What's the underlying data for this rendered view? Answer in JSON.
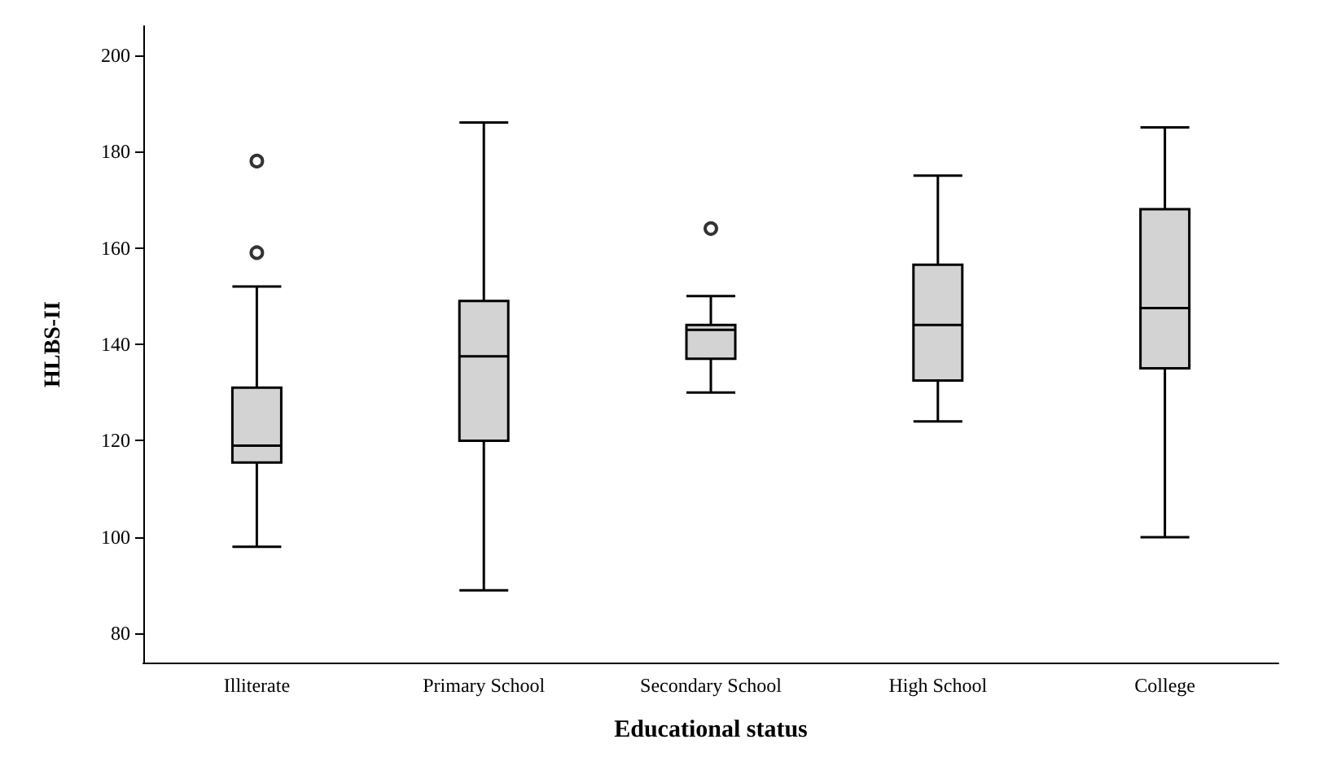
{
  "chart_data": {
    "type": "box",
    "xlabel": "Educational status",
    "ylabel": "HLBS-II",
    "color": "#d3d3d3",
    "categories": [
      "Illiterate",
      "Primary School",
      "Secondary School",
      "High School",
      "College"
    ],
    "boxes": [
      {
        "low": 98,
        "q1": 115.5,
        "median": 119,
        "q3": 131,
        "high": 152,
        "outliers": [
          159,
          178
        ]
      },
      {
        "low": 89,
        "q1": 120,
        "median": 137.5,
        "q3": 149,
        "high": 186
      },
      {
        "low": 130,
        "q1": 137,
        "median": 143,
        "q3": 144,
        "high": 150,
        "outliers": [
          164
        ]
      },
      {
        "low": 124,
        "q1": 132.5,
        "median": 144,
        "q3": 156.5,
        "high": 175
      },
      {
        "low": 100,
        "q1": 135,
        "median": 147.5,
        "q3": 168,
        "high": 185
      }
    ],
    "ylim": [
      74,
      206
    ],
    "yticks": [
      80,
      100,
      120,
      140,
      160,
      180,
      200
    ]
  }
}
